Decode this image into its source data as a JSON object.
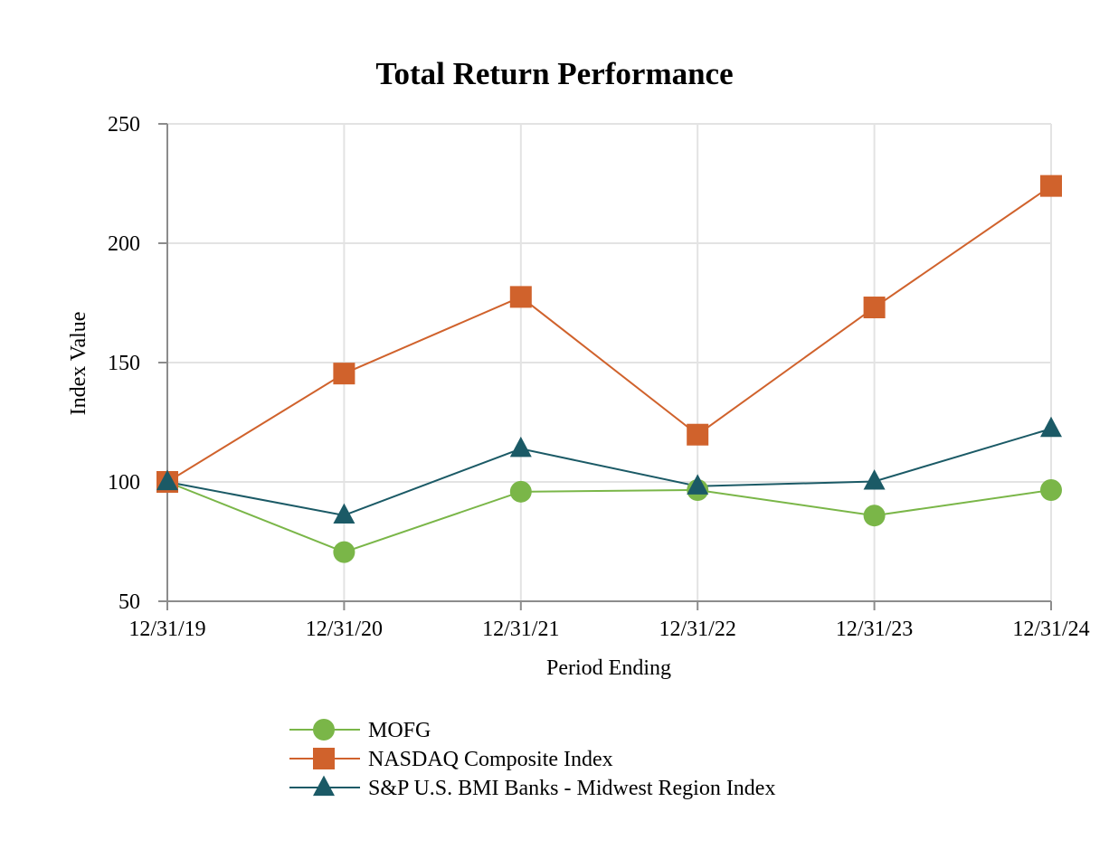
{
  "chart_data": {
    "type": "line",
    "title": "Total Return Performance",
    "xlabel": "Period Ending",
    "ylabel": "Index Value",
    "categories": [
      "12/31/19",
      "12/31/20",
      "12/31/21",
      "12/31/22",
      "12/31/23",
      "12/31/24"
    ],
    "ylim": [
      50,
      250
    ],
    "yticks": [
      50,
      100,
      150,
      200,
      250
    ],
    "grid": true,
    "legend_position": "bottom",
    "series": [
      {
        "name": "MOFG",
        "values": [
          100,
          70.6,
          95.9,
          96.6,
          85.9,
          96.6
        ],
        "color": "#7ab648",
        "marker": "circle"
      },
      {
        "name": "NASDAQ Composite Index",
        "values": [
          100,
          145.4,
          177.5,
          119.8,
          173.1,
          224.0
        ],
        "color": "#d0622c",
        "marker": "square"
      },
      {
        "name": "S&P U.S. BMI Banks - Midwest Region Index",
        "values": [
          100,
          86.0,
          113.9,
          98.2,
          100.2,
          122.3
        ],
        "color": "#1b5a66",
        "marker": "triangle"
      }
    ]
  }
}
